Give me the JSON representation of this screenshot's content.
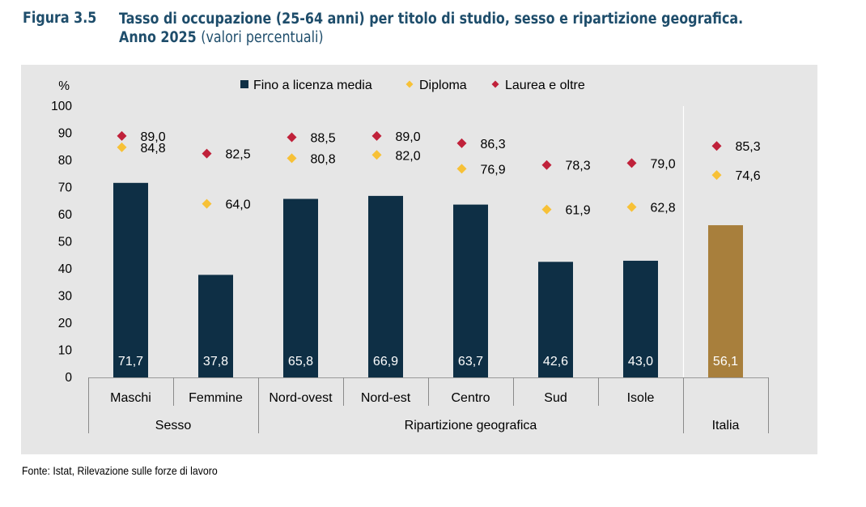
{
  "figure": {
    "label": "Figura 3.5",
    "title": "Tasso di occupazione (25-64 anni) per titolo di studio, sesso e ripartizione geografica.",
    "title_line2": "Anno 2025",
    "subtitle": "(valori percentuali)"
  },
  "source": "Fonte: Istat, Rilevazione sulle forze di lavoro",
  "chart_data": {
    "type": "bar",
    "ylabel": "%",
    "ylim": [
      0,
      100
    ],
    "yticks": [
      0,
      10,
      20,
      30,
      40,
      50,
      60,
      70,
      80,
      90,
      100
    ],
    "categories": [
      "Maschi",
      "Femmine",
      "Nord-ovest",
      "Nord-est",
      "Centro",
      "Sud",
      "Isole",
      ""
    ],
    "groups": [
      {
        "label": "Sesso",
        "start": 0,
        "end": 1
      },
      {
        "label": "Ripartizione geografica",
        "start": 2,
        "end": 6
      },
      {
        "label": "Italia",
        "start": 7,
        "end": 7
      }
    ],
    "legend_position": "top",
    "series": [
      {
        "name": "Fino a licenza media",
        "kind": "bar",
        "color": "#0e2f45",
        "highlight_color": "#a87f3c",
        "highlight_index": 7,
        "values": [
          71.7,
          37.8,
          65.8,
          66.9,
          63.7,
          42.6,
          43.0,
          56.1
        ],
        "labels": [
          "71,7",
          "37,8",
          "65,8",
          "66,9",
          "63,7",
          "42,6",
          "43,0",
          "56,1"
        ]
      },
      {
        "name": "Diploma",
        "kind": "marker",
        "color": "#f7c137",
        "values": [
          84.8,
          64.0,
          80.8,
          82.0,
          76.9,
          61.9,
          62.8,
          74.6
        ],
        "labels": [
          "84,8",
          "64,0",
          "80,8",
          "82,0",
          "76,9",
          "61,9",
          "62,8",
          "74,6"
        ]
      },
      {
        "name": "Laurea e oltre",
        "kind": "marker",
        "color": "#c0213a",
        "values": [
          89.0,
          82.5,
          88.5,
          89.0,
          86.3,
          78.3,
          79.0,
          85.3
        ],
        "labels": [
          "89,0",
          "82,5",
          "88,5",
          "89,0",
          "86,3",
          "78,3",
          "79,0",
          "85,3"
        ]
      }
    ]
  }
}
